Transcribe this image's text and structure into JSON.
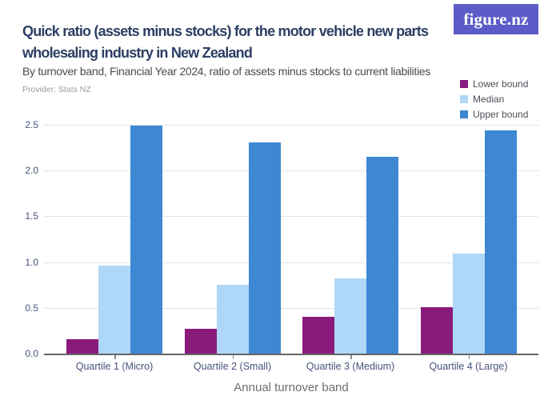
{
  "logo": {
    "text": "figure.nz",
    "bg_color": "#5b5cc7"
  },
  "header": {
    "title_line1": "Quick ratio (assets minus stocks) for the motor vehicle new parts",
    "title_line2": "wholesaling industry in New Zealand",
    "subtitle": "By turnover band, Financial Year 2024, ratio of assets minus stocks to current liabilities",
    "provider": "Provider: Stats NZ"
  },
  "chart_data": {
    "type": "bar",
    "title": "Quick ratio (assets minus stocks) for the motor vehicle new parts wholesaling industry in New Zealand",
    "subtitle": "By turnover band, Financial Year 2024, ratio of assets minus stocks to current liabilities",
    "categories": [
      "Quartile 1 (Micro)",
      "Quartile 2 (Small)",
      "Quartile 3 (Medium)",
      "Quartile 4 (Large)"
    ],
    "series": [
      {
        "name": "Lower bound",
        "color": "#8a1b7d",
        "values": [
          0.16,
          0.27,
          0.4,
          0.51
        ]
      },
      {
        "name": "Median",
        "color": "#aed7f8",
        "values": [
          0.96,
          0.75,
          0.82,
          1.09
        ]
      },
      {
        "name": "Upper bound",
        "color": "#3d87d3",
        "values": [
          2.49,
          2.31,
          2.15,
          2.44
        ]
      }
    ],
    "xlabel": "Annual turnover band",
    "ylabel": "",
    "ylim": [
      0,
      2.5
    ],
    "yticks": [
      "0.0",
      "0.5",
      "1.0",
      "1.5",
      "2.0",
      "2.5"
    ],
    "grid": true,
    "legend_position": "top-right"
  }
}
